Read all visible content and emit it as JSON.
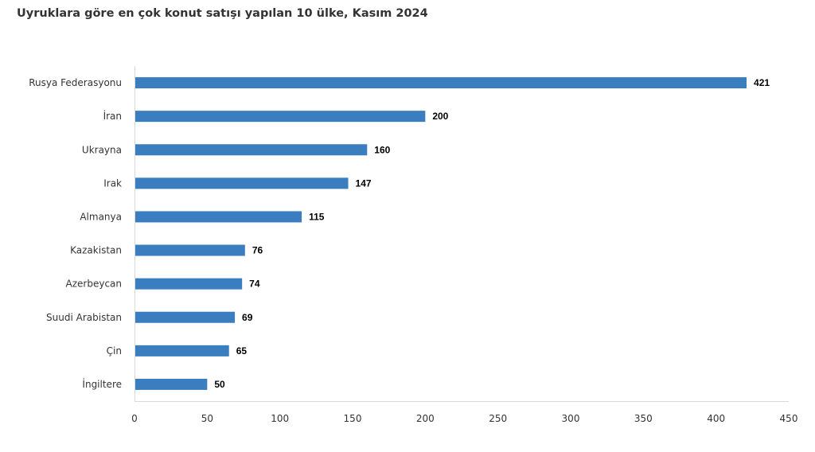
{
  "chart_data": {
    "type": "bar",
    "orientation": "horizontal",
    "title": "Uyruklara göre en çok konut satışı yapılan 10 ülke, Kasım 2024",
    "categories": [
      "Rusya Federasyonu",
      "İran",
      "Ukrayna",
      "Irak",
      "Almanya",
      "Kazakistan",
      "Azerbeycan",
      "Suudi Arabistan",
      "Çin",
      "İngiltere"
    ],
    "values": [
      421,
      200,
      160,
      147,
      115,
      76,
      74,
      69,
      65,
      50
    ],
    "xlim": [
      0,
      450
    ],
    "xticks": [
      0,
      50,
      100,
      150,
      200,
      250,
      300,
      350,
      400,
      450
    ],
    "xlabel": "",
    "ylabel": "",
    "grid": false,
    "data_labels": true,
    "bar_color": "#3a7ebf"
  }
}
